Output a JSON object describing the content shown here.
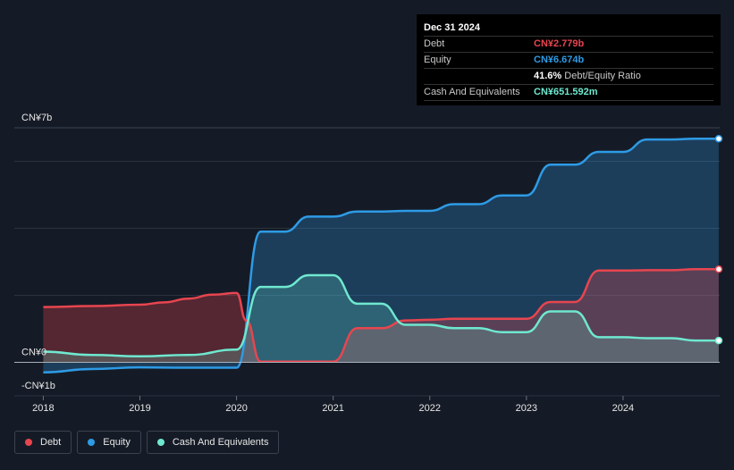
{
  "chart_data": {
    "type": "area",
    "currency_prefix": "CN¥",
    "y_axis_labels": [
      "CN¥7b",
      "CN¥0",
      "-CN¥1b"
    ],
    "y_axis_label_values": [
      7,
      0,
      -1
    ],
    "ylim": [
      -1,
      7
    ],
    "x_ticks": [
      "2018",
      "2019",
      "2020",
      "2021",
      "2022",
      "2023",
      "2024"
    ],
    "x_tick_values": [
      2018,
      2019,
      2020,
      2021,
      2022,
      2023,
      2024
    ],
    "xlim": [
      2017.7,
      2025.0
    ],
    "grid": true,
    "legend_position": "bottom-left",
    "colors": {
      "debt": "#e8454f",
      "equity": "#2e9be6",
      "cash": "#6fe8cf",
      "background": "#151b26",
      "grid": "#2a3240"
    },
    "series": [
      {
        "name": "Debt",
        "key": "debt",
        "x": [
          2018.0,
          2018.5,
          2019.0,
          2019.25,
          2019.5,
          2019.75,
          2020.0,
          2020.1,
          2020.25,
          2020.5,
          2020.75,
          2021.0,
          2021.25,
          2021.5,
          2021.75,
          2022.0,
          2022.25,
          2022.5,
          2022.75,
          2023.0,
          2023.25,
          2023.5,
          2023.75,
          2024.0,
          2024.25,
          2024.5,
          2024.75,
          2024.99
        ],
        "values": [
          1.65,
          1.68,
          1.72,
          1.79,
          1.9,
          2.02,
          2.07,
          1.25,
          0.02,
          0.02,
          0.02,
          0.02,
          1.02,
          1.02,
          1.25,
          1.27,
          1.3,
          1.3,
          1.3,
          1.3,
          1.8,
          1.8,
          2.74,
          2.74,
          2.75,
          2.75,
          2.78,
          2.779
        ]
      },
      {
        "name": "Equity",
        "key": "equity",
        "x": [
          2018.0,
          2018.5,
          2019.0,
          2019.5,
          2020.0,
          2020.25,
          2020.5,
          2020.75,
          2021.0,
          2021.25,
          2021.5,
          2021.75,
          2022.0,
          2022.25,
          2022.5,
          2022.75,
          2023.0,
          2023.25,
          2023.5,
          2023.75,
          2024.0,
          2024.25,
          2024.5,
          2024.75,
          2024.99
        ],
        "values": [
          -0.3,
          -0.2,
          -0.15,
          -0.16,
          -0.16,
          3.9,
          3.9,
          4.35,
          4.35,
          4.5,
          4.5,
          4.52,
          4.52,
          4.72,
          4.72,
          4.98,
          4.98,
          5.9,
          5.9,
          6.28,
          6.28,
          6.65,
          6.65,
          6.674,
          6.674
        ]
      },
      {
        "name": "Cash And Equivalents",
        "key": "cash",
        "x": [
          2018.0,
          2018.5,
          2019.0,
          2019.5,
          2020.0,
          2020.25,
          2020.5,
          2020.75,
          2021.0,
          2021.25,
          2021.5,
          2021.75,
          2022.0,
          2022.25,
          2022.5,
          2022.75,
          2023.0,
          2023.25,
          2023.5,
          2023.75,
          2024.0,
          2024.25,
          2024.5,
          2024.75,
          2024.99
        ],
        "values": [
          0.32,
          0.22,
          0.18,
          0.22,
          0.38,
          2.25,
          2.25,
          2.6,
          2.6,
          1.75,
          1.75,
          1.12,
          1.12,
          1.02,
          1.02,
          0.9,
          0.9,
          1.52,
          1.52,
          0.75,
          0.75,
          0.72,
          0.72,
          0.65,
          0.651592
        ]
      }
    ]
  },
  "tooltip": {
    "date": "Dec 31 2024",
    "rows": [
      {
        "label": "Debt",
        "value": "CN¥2.779b",
        "color": "#e8454f"
      },
      {
        "label": "Equity",
        "value": "CN¥6.674b",
        "color": "#2e9be6"
      },
      {
        "label": "",
        "value": "41.6%",
        "suffix": "Debt/Equity Ratio",
        "color": "#ffffff"
      },
      {
        "label": "Cash And Equivalents",
        "value": "CN¥651.592m",
        "color": "#6fe8cf"
      }
    ]
  },
  "legend": [
    {
      "label": "Debt",
      "color": "#e8454f"
    },
    {
      "label": "Equity",
      "color": "#2e9be6"
    },
    {
      "label": "Cash And Equivalents",
      "color": "#6fe8cf"
    }
  ]
}
